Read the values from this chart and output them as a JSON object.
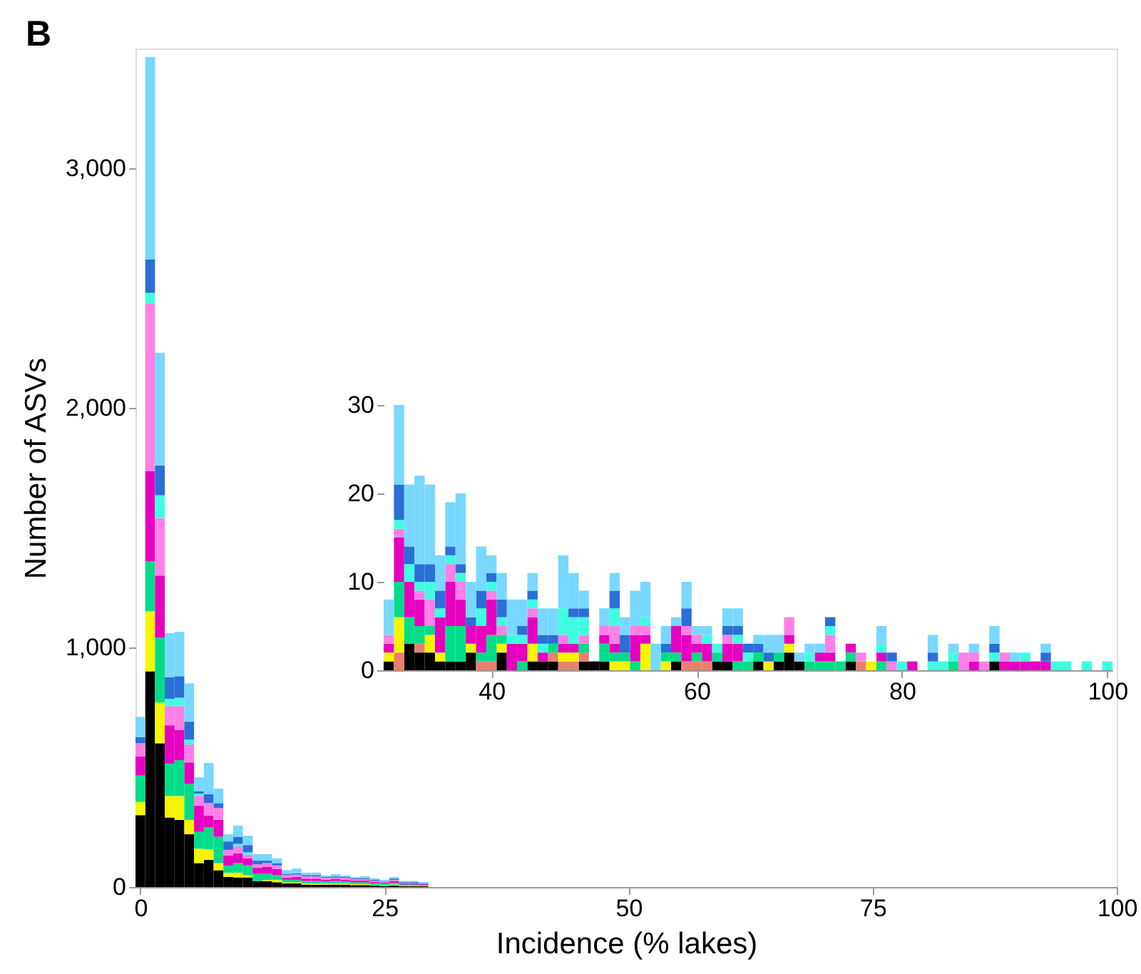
{
  "chart_data": [
    {
      "type": "bar",
      "title": "B",
      "xlabel": "Incidence (% lakes)",
      "ylabel": "Number of ASVs",
      "stacked": true,
      "legend": false,
      "grid": false,
      "x": [
        0,
        1,
        2,
        3,
        4,
        5,
        6,
        7,
        8,
        9,
        10,
        11,
        12,
        13,
        14,
        15,
        16,
        17,
        18,
        19,
        20,
        21,
        22,
        23,
        24,
        25,
        26,
        27,
        28,
        29
      ],
      "xlim": [
        -0.5,
        100
      ],
      "xticks": [
        0,
        25,
        50,
        75,
        100
      ],
      "ylim": [
        0,
        3500
      ],
      "yticks": [
        0,
        {
          "value": 1000,
          "label": "1,000"
        },
        {
          "value": 2000,
          "label": "2,000"
        },
        {
          "value": 3000,
          "label": "3,000"
        }
      ],
      "series": [
        {
          "color": "#000000",
          "values": [
            300,
            900,
            600,
            290,
            280,
            220,
            100,
            113,
            70,
            42,
            40,
            40,
            25,
            25,
            20,
            15,
            15,
            10,
            10,
            10,
            10,
            10,
            8,
            8,
            6,
            5,
            6,
            4,
            4,
            3
          ]
        },
        {
          "color": "#e8806e",
          "values": [
            0,
            0,
            0,
            0,
            0,
            0,
            0,
            0,
            0,
            0,
            0,
            0,
            0,
            0,
            0,
            0,
            0,
            0,
            0,
            0,
            0,
            0,
            0,
            0,
            0,
            0,
            0,
            0,
            0,
            0
          ]
        },
        {
          "color": "#f5f500",
          "values": [
            55,
            250,
            170,
            90,
            100,
            60,
            60,
            45,
            30,
            18,
            20,
            10,
            0,
            5,
            10,
            5,
            5,
            5,
            5,
            5,
            5,
            5,
            4,
            4,
            3,
            3,
            4,
            2,
            2,
            2
          ]
        },
        {
          "color": "#00dd88",
          "values": [
            110,
            210,
            270,
            135,
            150,
            150,
            70,
            92,
            110,
            29,
            40,
            40,
            30,
            25,
            20,
            10,
            10,
            10,
            10,
            8,
            10,
            8,
            8,
            8,
            7,
            6,
            8,
            5,
            5,
            4
          ]
        },
        {
          "color": "#e600c0",
          "values": [
            80,
            375,
            260,
            160,
            125,
            90,
            110,
            48,
            70,
            42,
            40,
            30,
            25,
            30,
            25,
            10,
            12,
            10,
            10,
            8,
            8,
            8,
            7,
            7,
            6,
            5,
            7,
            4,
            4,
            3
          ]
        },
        {
          "color": "#ff80e6",
          "values": [
            55,
            700,
            240,
            80,
            100,
            75,
            40,
            53,
            50,
            24,
            30,
            15,
            15,
            15,
            15,
            10,
            10,
            10,
            10,
            7,
            6,
            7,
            5,
            5,
            4,
            3,
            5,
            3,
            3,
            3
          ]
        },
        {
          "color": "#40ffe0",
          "values": [
            0,
            45,
            95,
            30,
            35,
            20,
            10,
            0,
            0,
            0,
            10,
            10,
            0,
            0,
            0,
            0,
            0,
            0,
            0,
            0,
            0,
            0,
            0,
            0,
            0,
            0,
            0,
            0,
            0,
            0
          ]
        },
        {
          "color": "#2a6fd6",
          "values": [
            25,
            140,
            125,
            90,
            90,
            75,
            10,
            36,
            20,
            35,
            30,
            30,
            15,
            10,
            10,
            5,
            5,
            5,
            5,
            5,
            5,
            5,
            5,
            5,
            4,
            3,
            5,
            3,
            3,
            2
          ]
        },
        {
          "color": "#78d8ff",
          "values": [
            85,
            845,
            470,
            185,
            185,
            160,
            58,
            131,
            61,
            30,
            46,
            39,
            27,
            27,
            19,
            16,
            20,
            10,
            10,
            5,
            10,
            5,
            5,
            8,
            6,
            5,
            7,
            4,
            4,
            3
          ]
        }
      ]
    },
    {
      "type": "bar",
      "stacked": true,
      "legend": false,
      "grid": false,
      "x": [
        30,
        31,
        32,
        33,
        34,
        35,
        36,
        37,
        38,
        39,
        40,
        41,
        42,
        43,
        44,
        45,
        46,
        47,
        48,
        49,
        50,
        51,
        52,
        53,
        54,
        55,
        56,
        57,
        58,
        59,
        60,
        61,
        62,
        63,
        64,
        65,
        66,
        67,
        68,
        69,
        70,
        71,
        72,
        73,
        74,
        75,
        76,
        77,
        78,
        79,
        80,
        81,
        82,
        83,
        84,
        85,
        86,
        87,
        88,
        89,
        90,
        91,
        92,
        93,
        94,
        95,
        96,
        97,
        98,
        99,
        100
      ],
      "xlim": [
        29.5,
        100.5
      ],
      "xticks": [
        40,
        60,
        80,
        100
      ],
      "ylim": [
        0,
        30
      ],
      "yticks": [
        0,
        10,
        20,
        30
      ],
      "series": [
        {
          "color": "#000000",
          "values": [
            1,
            0,
            3,
            2,
            2,
            1,
            1,
            1,
            2,
            0,
            0,
            2,
            0,
            0,
            1,
            1,
            1,
            0,
            0,
            1,
            1,
            1,
            0,
            0,
            0,
            0,
            0,
            0,
            1,
            0,
            0,
            0,
            1,
            1,
            0,
            0,
            1,
            0,
            1,
            2,
            1,
            0,
            0,
            0,
            0,
            1,
            0,
            0,
            0,
            0,
            0,
            0,
            0,
            0,
            0,
            0,
            0,
            0,
            0,
            1,
            0,
            0,
            0,
            0,
            0,
            0,
            0,
            0,
            0,
            0,
            0
          ]
        },
        {
          "color": "#e8806e",
          "values": [
            0,
            2,
            0,
            1,
            0,
            0,
            0,
            0,
            0,
            1,
            1,
            0,
            0,
            0,
            0,
            0,
            1,
            1,
            1,
            1,
            0,
            0,
            0,
            0,
            0,
            0,
            0,
            0,
            0,
            1,
            1,
            1,
            0,
            0,
            0,
            0,
            0,
            0,
            0,
            0,
            0,
            0,
            0,
            0,
            0,
            0,
            1,
            0,
            0,
            0,
            0,
            0,
            0,
            0,
            0,
            0,
            0,
            0,
            0,
            0,
            0,
            0,
            0,
            0,
            0,
            0,
            0,
            0,
            0,
            0,
            0
          ]
        },
        {
          "color": "#f5f500",
          "values": [
            1,
            4,
            0,
            0,
            2,
            1,
            0,
            0,
            1,
            0,
            0,
            1,
            0,
            0,
            2,
            0,
            0,
            1,
            1,
            0,
            0,
            0,
            1,
            1,
            0,
            3,
            0,
            1,
            0,
            0,
            0,
            0,
            0,
            0,
            0,
            0,
            0,
            1,
            0,
            1,
            0,
            0,
            0,
            0,
            0,
            0,
            0,
            1,
            0,
            0,
            0,
            0,
            0,
            0,
            0,
            0,
            0,
            0,
            0,
            0,
            0,
            0,
            0,
            0,
            0,
            0,
            0,
            0,
            0,
            0,
            0
          ]
        },
        {
          "color": "#00dd88",
          "values": [
            0,
            4,
            3,
            2,
            1,
            0,
            4,
            4,
            0,
            1,
            3,
            1,
            0,
            1,
            0,
            0,
            1,
            0,
            0,
            1,
            0,
            2,
            1,
            1,
            1,
            0,
            0,
            1,
            1,
            0,
            1,
            0,
            1,
            0,
            1,
            1,
            1,
            0,
            1,
            0,
            0,
            1,
            1,
            1,
            1,
            1,
            0,
            0,
            1,
            0,
            0,
            0,
            0,
            0,
            0,
            1,
            0,
            0,
            0,
            0,
            0,
            0,
            0,
            0,
            0,
            0,
            0,
            0,
            0,
            0,
            0
          ]
        },
        {
          "color": "#e600c0",
          "values": [
            1,
            5,
            4,
            3,
            0,
            4,
            5,
            3,
            2,
            3,
            4,
            0,
            3,
            2,
            3,
            1,
            0,
            1,
            1,
            0,
            0,
            1,
            1,
            0,
            3,
            1,
            0,
            0,
            3,
            3,
            1,
            2,
            0,
            2,
            2,
            0,
            0,
            0,
            0,
            1,
            0,
            0,
            1,
            1,
            0,
            1,
            0,
            0,
            1,
            0,
            0,
            1,
            0,
            0,
            0,
            0,
            0,
            1,
            0,
            0,
            1,
            1,
            1,
            1,
            1,
            0,
            0,
            0,
            0,
            0,
            0
          ]
        },
        {
          "color": "#ff80e6",
          "values": [
            1,
            1,
            0,
            1,
            3,
            0,
            2,
            2,
            0,
            0,
            1,
            1,
            0,
            0,
            1,
            0,
            0,
            1,
            0,
            1,
            0,
            1,
            2,
            0,
            1,
            1,
            0,
            0,
            0,
            1,
            1,
            0,
            0,
            1,
            0,
            0,
            0,
            0,
            0,
            2,
            0,
            0,
            0,
            2,
            0,
            0,
            1,
            0,
            0,
            1,
            0,
            0,
            0,
            0,
            0,
            0,
            2,
            1,
            1,
            0,
            1,
            0,
            0,
            0,
            0,
            0,
            0,
            0,
            0,
            0,
            0
          ]
        },
        {
          "color": "#40ffe0",
          "values": [
            0,
            1,
            2,
            1,
            2,
            1,
            1,
            1,
            0,
            2,
            1,
            1,
            1,
            1,
            1,
            1,
            0,
            3,
            3,
            2,
            0,
            0,
            2,
            0,
            0,
            1,
            0,
            0,
            0,
            0,
            0,
            1,
            1,
            0,
            1,
            1,
            0,
            0,
            0,
            0,
            0,
            1,
            0,
            1,
            0,
            0,
            0,
            0,
            1,
            0,
            1,
            0,
            0,
            1,
            1,
            1,
            0,
            0,
            0,
            1,
            0,
            0,
            1,
            0,
            0,
            1,
            1,
            0,
            1,
            0,
            1
          ]
        },
        {
          "color": "#2a6fd6",
          "values": [
            0,
            4,
            2,
            2,
            2,
            2,
            1,
            1,
            1,
            2,
            1,
            2,
            0,
            1,
            1,
            1,
            1,
            0,
            1,
            1,
            0,
            0,
            2,
            2,
            0,
            0,
            0,
            1,
            0,
            2,
            0,
            0,
            0,
            1,
            1,
            1,
            1,
            1,
            0,
            0,
            0,
            0,
            0,
            1,
            0,
            0,
            0,
            0,
            0,
            1,
            0,
            0,
            0,
            1,
            0,
            0,
            0,
            0,
            0,
            1,
            0,
            0,
            0,
            0,
            1,
            0,
            0,
            0,
            0,
            0,
            0
          ]
        },
        {
          "color": "#78d8ff",
          "values": [
            4,
            9,
            7,
            10,
            9,
            4,
            5,
            8,
            4,
            5,
            2,
            3,
            4,
            3,
            2,
            3,
            3,
            6,
            4,
            2,
            0,
            2,
            2,
            2,
            4,
            4,
            3,
            2,
            1,
            3,
            1,
            1,
            0,
            2,
            2,
            0,
            1,
            2,
            2,
            0,
            1,
            1,
            1,
            0,
            0,
            0,
            0,
            0,
            2,
            0,
            0,
            0,
            0,
            2,
            0,
            1,
            0,
            1,
            0,
            2,
            0,
            1,
            0,
            0,
            1,
            0,
            0,
            0,
            0,
            0,
            0
          ]
        }
      ]
    }
  ]
}
